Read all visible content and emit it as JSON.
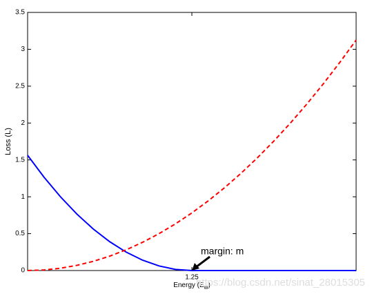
{
  "chart_data": {
    "type": "line",
    "y_label": "Loss (L)",
    "x_label": [
      "Energy (E",
      "w",
      ")"
    ],
    "annotation": "margin: m",
    "watermark": "https://blog.csdn.net/sinat_28015305",
    "x": [
      0,
      0.125,
      0.25,
      0.375,
      0.5,
      0.625,
      0.75,
      0.875,
      1,
      1.125,
      1.25,
      1.375,
      1.5,
      1.625,
      1.75,
      1.875,
      2,
      2.125,
      2.25,
      2.375,
      2.5
    ],
    "series": [
      {
        "color": "#0000ff",
        "dash": false,
        "values": [
          1.5625,
          1.265625,
          1,
          0.765625,
          0.5625,
          0.390625,
          0.25,
          0.140625,
          0.0625,
          0.015625,
          0,
          0,
          0,
          0,
          0,
          0,
          0,
          0,
          0,
          0,
          0
        ]
      },
      {
        "color": "#ff0000",
        "dash": true,
        "values": [
          0,
          0.0078125,
          0.03125,
          0.0703125,
          0.125,
          0.1953125,
          0.28125,
          0.3828125,
          0.5,
          0.6328125,
          0.78125,
          0.9453125,
          1.125,
          1.3203125,
          1.53125,
          1.7578125,
          2,
          2.2578125,
          2.53125,
          2.8203125,
          3.125
        ]
      }
    ],
    "annotation_x": 1.25,
    "annotation_y": 0,
    "xlim": [
      0,
      2.5
    ],
    "xticks": [
      1.25
    ],
    "ylim": [
      0,
      3.5
    ],
    "yticks": [
      0,
      0.5,
      1,
      1.5,
      2,
      2.5,
      3,
      3.5
    ],
    "grid": false
  }
}
